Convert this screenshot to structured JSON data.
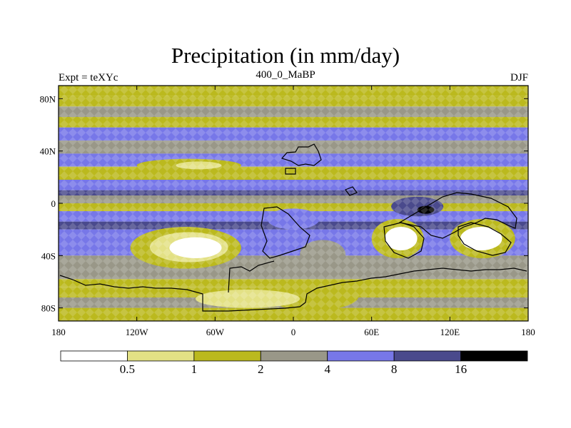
{
  "header": {
    "title": "Precipitation (in mm/day)",
    "left_label": "Expt = teXYc",
    "center_label": "400_0_MaBP",
    "right_label": "DJF"
  },
  "chart_data": {
    "type": "heatmap",
    "title": "Precipitation (in mm/day)",
    "xlabel": "",
    "ylabel": "",
    "xlim": [
      -180,
      180
    ],
    "ylim": [
      -90,
      90
    ],
    "x_ticks": [
      {
        "value": -180,
        "label": "180"
      },
      {
        "value": -120,
        "label": "120W"
      },
      {
        "value": -60,
        "label": "60W"
      },
      {
        "value": 0,
        "label": "0"
      },
      {
        "value": 60,
        "label": "60E"
      },
      {
        "value": 120,
        "label": "120E"
      },
      {
        "value": 180,
        "label": "180"
      }
    ],
    "y_ticks": [
      {
        "value": 80,
        "label": "80N"
      },
      {
        "value": 40,
        "label": "40N"
      },
      {
        "value": 0,
        "label": "0"
      },
      {
        "value": -40,
        "label": "40S"
      },
      {
        "value": -80,
        "label": "80S"
      }
    ],
    "levels": [
      0.5,
      1,
      2,
      4,
      8,
      16
    ],
    "colorbar_labels": [
      "0.5",
      "1",
      "2",
      "4",
      "8",
      "16"
    ],
    "colors": [
      "#ffffff",
      "#e3e185",
      "#bbb91e",
      "#999788",
      "#7777e8",
      "#4a4a8c",
      "#000000"
    ],
    "zonal_bands": [
      {
        "lat": [
          82,
          90
        ],
        "class": 2
      },
      {
        "lat": [
          74,
          82
        ],
        "class": 2
      },
      {
        "lat": [
          66,
          74
        ],
        "class": 3
      },
      {
        "lat": [
          58,
          66
        ],
        "class": 2
      },
      {
        "lat": [
          48,
          58
        ],
        "class": 4
      },
      {
        "lat": [
          38,
          48
        ],
        "class": 3
      },
      {
        "lat": [
          28,
          38
        ],
        "class": 4
      },
      {
        "lat": [
          18,
          28
        ],
        "class": 2
      },
      {
        "lat": [
          10,
          18
        ],
        "class": 4
      },
      {
        "lat": [
          6,
          10
        ],
        "class": 5
      },
      {
        "lat": [
          0,
          6
        ],
        "class": 3
      },
      {
        "lat": [
          -6,
          0
        ],
        "class": 2
      },
      {
        "lat": [
          -14,
          -6
        ],
        "class": 4
      },
      {
        "lat": [
          -20,
          -14
        ],
        "class": 5
      },
      {
        "lat": [
          -30,
          -20
        ],
        "class": 4
      },
      {
        "lat": [
          -40,
          -30
        ],
        "class": 4
      },
      {
        "lat": [
          -48,
          -40
        ],
        "class": 3
      },
      {
        "lat": [
          -58,
          -48
        ],
        "class": 3
      },
      {
        "lat": [
          -64,
          -58
        ],
        "class": 2
      },
      {
        "lat": [
          -72,
          -64
        ],
        "class": 2
      },
      {
        "lat": [
          -80,
          -72
        ],
        "class": 3
      },
      {
        "lat": [
          -90,
          -80
        ],
        "class": 2
      }
    ],
    "regions": [
      {
        "lon": [
          -125,
          -40
        ],
        "lat": [
          -50,
          -18
        ],
        "class": 2
      },
      {
        "lon": [
          -110,
          -50
        ],
        "lat": [
          -45,
          -22
        ],
        "class": 1
      },
      {
        "lon": [
          -95,
          -55
        ],
        "lat": [
          -42,
          -26
        ],
        "class": 0
      },
      {
        "lon": [
          -20,
          50
        ],
        "lat": [
          -82,
          -60
        ],
        "class": 2
      },
      {
        "lon": [
          -75,
          5
        ],
        "lat": [
          -80,
          -66
        ],
        "class": 1
      },
      {
        "lon": [
          60,
          100
        ],
        "lat": [
          -42,
          -12
        ],
        "class": 2
      },
      {
        "lon": [
          70,
          95
        ],
        "lat": [
          -36,
          -18
        ],
        "class": 0
      },
      {
        "lon": [
          120,
          170
        ],
        "lat": [
          -42,
          -12
        ],
        "class": 2
      },
      {
        "lon": [
          128,
          160
        ],
        "lat": [
          -36,
          -18
        ],
        "class": 0
      },
      {
        "lon": [
          75,
          115
        ],
        "lat": [
          -10,
          5
        ],
        "class": 5
      },
      {
        "lon": [
          95,
          108
        ],
        "lat": [
          -8,
          -2
        ],
        "class": 6
      },
      {
        "lon": [
          -120,
          -40
        ],
        "lat": [
          24,
          34
        ],
        "class": 2
      },
      {
        "lon": [
          -90,
          -55
        ],
        "lat": [
          26,
          32
        ],
        "class": 1
      },
      {
        "lon": [
          -20,
          20
        ],
        "lat": [
          -20,
          -4
        ],
        "class": 4
      },
      {
        "lon": [
          5,
          40
        ],
        "lat": [
          -50,
          -28
        ],
        "class": 3
      }
    ]
  }
}
